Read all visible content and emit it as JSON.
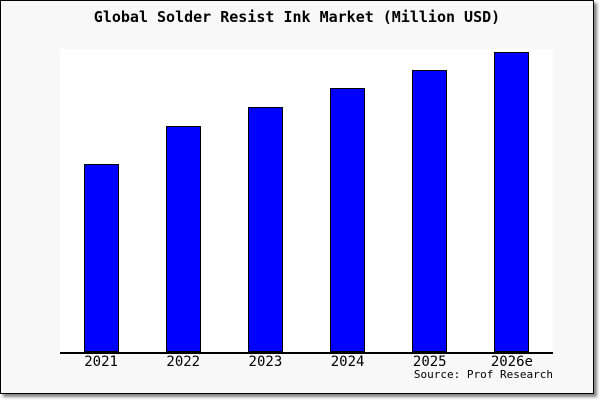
{
  "title": "Global Solder Resist Ink Market (Million USD)",
  "source": "Source: Prof Research",
  "colors": {
    "bar_fill": "#0000ff",
    "bar_border": "#000000",
    "figure_bg": "#f8f8f8",
    "plot_bg": "#ffffff",
    "axis": "#000000",
    "text": "#000000"
  },
  "chart_data": {
    "type": "bar",
    "title": "Global Solder Resist Ink Market (Million USD)",
    "categories": [
      "2021",
      "2022",
      "2023",
      "2024",
      "2025",
      "2026e"
    ],
    "values": [
      62.8,
      75.3,
      81.7,
      88.0,
      94.0,
      100.0
    ],
    "values_note": "No y-axis ticks or data labels are shown in the chart; values are bar heights relative to the tallest (2026e) bar in percent.",
    "bar_height_fraction_of_plot": [
      0.624,
      0.748,
      0.811,
      0.874,
      0.934,
      0.993
    ],
    "xlabel": "",
    "ylabel": "",
    "y_axis_labels_shown": false,
    "grid": false,
    "legend": false,
    "annotation": "Source: Prof Research"
  }
}
